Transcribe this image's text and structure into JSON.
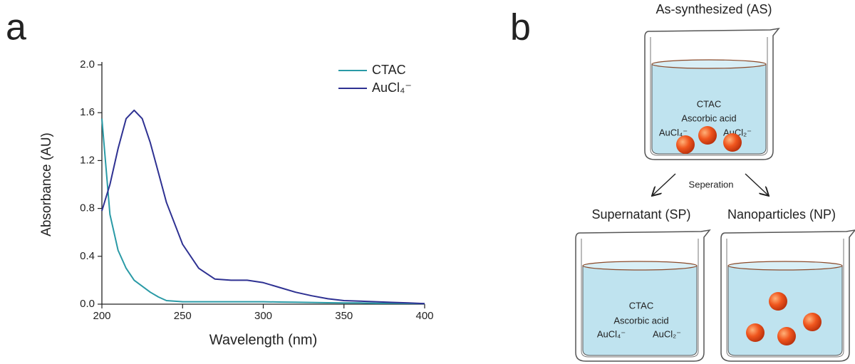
{
  "panel_labels": [
    "a",
    "b"
  ],
  "chart_data": {
    "type": "line",
    "x_label": "Wavelength (nm)",
    "y_label": "Absorbance (AU)",
    "x": [
      200,
      205,
      210,
      215,
      220,
      225,
      230,
      235,
      240,
      250,
      260,
      270,
      280,
      290,
      300,
      310,
      320,
      330,
      340,
      350,
      360,
      370,
      380,
      390,
      400
    ],
    "series": [
      {
        "name": "CTAC",
        "color": "#2a9aa6",
        "values": [
          1.55,
          0.75,
          0.45,
          0.3,
          0.2,
          0.15,
          0.1,
          0.06,
          0.03,
          0.02,
          0.02,
          0.02,
          0.02,
          0.02,
          0.02,
          0.018,
          0.016,
          0.014,
          0.012,
          0.01,
          0.01,
          0.008,
          0.007,
          0.006,
          0.005
        ]
      },
      {
        "name": "AuCl₄⁻",
        "color": "#2e3192",
        "values": [
          0.78,
          1.0,
          1.3,
          1.55,
          1.62,
          1.55,
          1.35,
          1.1,
          0.85,
          0.5,
          0.3,
          0.21,
          0.2,
          0.2,
          0.18,
          0.14,
          0.1,
          0.07,
          0.045,
          0.03,
          0.025,
          0.02,
          0.015,
          0.01,
          0.005
        ]
      }
    ],
    "xlim": [
      200,
      400
    ],
    "xticks": [
      200,
      250,
      300,
      350,
      400
    ],
    "ylim": [
      0,
      2.0
    ],
    "yticks": [
      {
        "value": 0,
        "label": "0.0"
      },
      0.4,
      0.8,
      1.2,
      1.6,
      {
        "value": 2,
        "label": "2.0"
      }
    ],
    "legend": "top-right"
  },
  "diagram": {
    "top_label": "As-synthesized (AS)",
    "top_contents": [
      "CTAC",
      "Ascorbic acid",
      "AuCl₄⁻",
      "AuCl₂⁻"
    ],
    "arrow_label": "Seperation",
    "left_label": "Supernatant (SP)",
    "left_contents": [
      "CTAC",
      "Ascorbic acid",
      "AuCl₄⁻",
      "AuCl₂⁻"
    ],
    "right_label": "Nanoparticles (NP)"
  }
}
